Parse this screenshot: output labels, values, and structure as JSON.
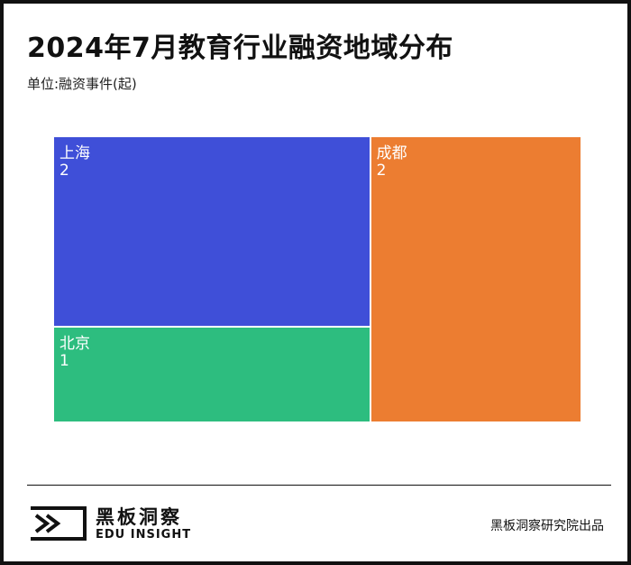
{
  "header": {
    "title": "2024年7月教育行业融资地域分布",
    "subtitle": "单位:融资事件(起)"
  },
  "chart_data": {
    "type": "treemap",
    "unit": "融资事件(起)",
    "items": [
      {
        "name": "上海",
        "value": 2,
        "color": "#3f4fd8"
      },
      {
        "name": "成都",
        "value": 2,
        "color": "#ec7d31"
      },
      {
        "name": "北京",
        "value": 1,
        "color": "#2dbd7f"
      }
    ]
  },
  "footer": {
    "logo_cn": "黑板洞察",
    "logo_en": "EDU INSIGHT",
    "source": "黑板洞察研究院出品"
  }
}
